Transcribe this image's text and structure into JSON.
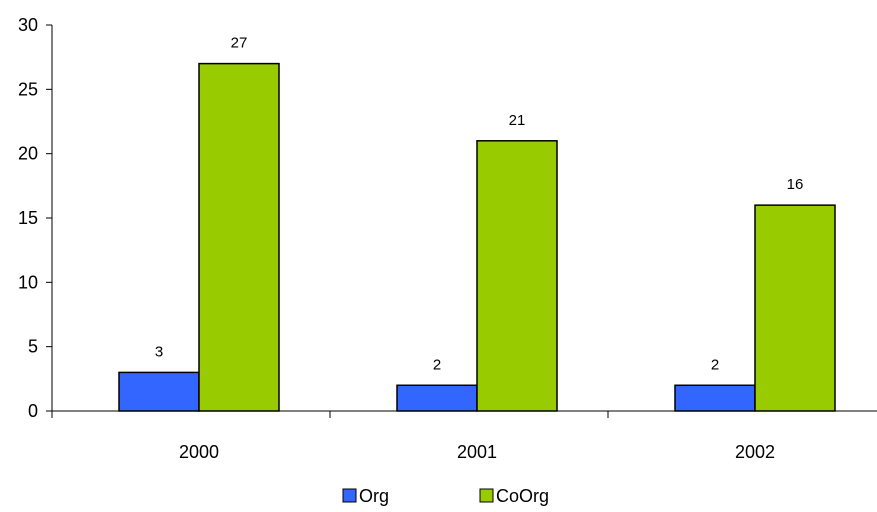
{
  "chart_data": {
    "type": "bar",
    "title": "",
    "xlabel": "",
    "ylabel": "",
    "categories": [
      "2000",
      "2001",
      "2002"
    ],
    "series": [
      {
        "name": "Org",
        "values": [
          3,
          2,
          2
        ],
        "color": "#3366ff"
      },
      {
        "name": "CoOrg",
        "values": [
          27,
          21,
          16
        ],
        "color": "#99cc00"
      }
    ],
    "ylim": [
      0,
      30
    ],
    "yticks": [
      0,
      5,
      10,
      15,
      20,
      25,
      30
    ],
    "grid": false,
    "legend_position": "bottom"
  }
}
